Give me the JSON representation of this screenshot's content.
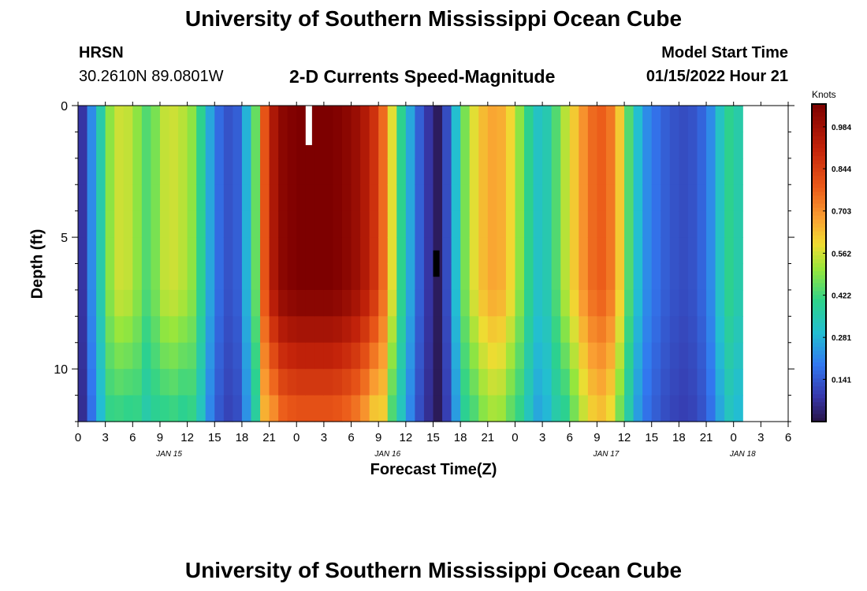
{
  "header": {
    "title": "University of Southern Mississippi Ocean Cube",
    "station": "HRSN",
    "coords": "30.2610N  89.0801W",
    "subtitle": "2-D Currents Speed-Magnitude",
    "model_start_label": "Model Start Time",
    "model_start_value": "01/15/2022 Hour 21"
  },
  "footer": {
    "title": "University of Southern Mississippi Ocean Cube"
  },
  "chart_data": {
    "type": "heatmap",
    "title": "2-D Currents Speed-Magnitude",
    "xlabel": "Forecast Time(Z)",
    "ylabel": "Depth (ft)",
    "x_range_hours": [
      0,
      78
    ],
    "y_range_ft": [
      0,
      12
    ],
    "y_inverted": true,
    "x_tick_labels": [
      "0",
      "3",
      "6",
      "9",
      "12",
      "15",
      "18",
      "21",
      "0",
      "3",
      "6",
      "9",
      "12",
      "15",
      "18",
      "21",
      "0",
      "3",
      "6",
      "9",
      "12",
      "15",
      "18",
      "21",
      "0",
      "3",
      "6"
    ],
    "y_ticks": [
      0,
      5,
      10
    ],
    "date_labels": [
      {
        "label": "JAN 15",
        "hour": 10
      },
      {
        "label": "JAN 16",
        "hour": 34
      },
      {
        "label": "JAN 17",
        "hour": 58
      },
      {
        "label": "JAN 18",
        "hour": 73
      }
    ],
    "colorbar": {
      "unit": "Knots",
      "min": 0.0,
      "max": 1.06,
      "tick_labels": [
        "0.984",
        "0.844",
        "0.703",
        "0.562",
        "0.422",
        "0.281",
        "0.141"
      ],
      "tick_values": [
        0.984,
        0.844,
        0.703,
        0.562,
        0.422,
        0.281,
        0.141
      ]
    },
    "depth_levels_ft": [
      0,
      1,
      2,
      3,
      4,
      5,
      6,
      7,
      8,
      9,
      10,
      11,
      12
    ],
    "surface_speed_by_hour": [
      [
        0,
        0.08
      ],
      [
        1,
        0.22
      ],
      [
        2,
        0.36
      ],
      [
        3,
        0.5
      ],
      [
        4,
        0.56
      ],
      [
        5,
        0.55
      ],
      [
        6,
        0.5
      ],
      [
        7,
        0.44
      ],
      [
        8,
        0.48
      ],
      [
        9,
        0.55
      ],
      [
        10,
        0.56
      ],
      [
        11,
        0.54
      ],
      [
        12,
        0.5
      ],
      [
        13,
        0.4
      ],
      [
        14,
        0.26
      ],
      [
        15,
        0.17
      ],
      [
        16,
        0.13
      ],
      [
        17,
        0.15
      ],
      [
        18,
        0.28
      ],
      [
        19,
        0.46
      ],
      [
        20,
        0.8
      ],
      [
        21,
        0.96
      ],
      [
        22,
        1.03
      ],
      [
        23,
        1.05
      ],
      [
        24,
        1.06
      ],
      [
        25,
        1.06
      ],
      [
        26,
        1.06
      ],
      [
        27,
        1.06
      ],
      [
        28,
        1.05
      ],
      [
        29,
        1.03
      ],
      [
        30,
        1.0
      ],
      [
        31,
        0.95
      ],
      [
        32,
        0.88
      ],
      [
        33,
        0.76
      ],
      [
        34,
        0.58
      ],
      [
        35,
        0.4
      ],
      [
        36,
        0.26
      ],
      [
        37,
        0.15
      ],
      [
        38,
        0.08
      ],
      [
        39,
        0.02
      ],
      [
        40,
        0.12
      ],
      [
        41,
        0.3
      ],
      [
        42,
        0.48
      ],
      [
        43,
        0.58
      ],
      [
        44,
        0.64
      ],
      [
        45,
        0.67
      ],
      [
        46,
        0.66
      ],
      [
        47,
        0.6
      ],
      [
        48,
        0.5
      ],
      [
        49,
        0.4
      ],
      [
        50,
        0.32
      ],
      [
        51,
        0.35
      ],
      [
        52,
        0.44
      ],
      [
        53,
        0.54
      ],
      [
        54,
        0.62
      ],
      [
        55,
        0.7
      ],
      [
        56,
        0.76
      ],
      [
        57,
        0.78
      ],
      [
        58,
        0.74
      ],
      [
        59,
        0.62
      ],
      [
        60,
        0.44
      ],
      [
        61,
        0.3
      ],
      [
        62,
        0.22
      ],
      [
        63,
        0.18
      ],
      [
        64,
        0.15
      ],
      [
        65,
        0.13
      ],
      [
        66,
        0.12
      ],
      [
        67,
        0.13
      ],
      [
        68,
        0.16
      ],
      [
        69,
        0.22
      ],
      [
        70,
        0.32
      ],
      [
        71,
        0.4
      ],
      [
        72,
        0.36
      ]
    ],
    "missing_data_cells": [
      {
        "hour_start": 25,
        "hour_end": 25.7,
        "depth_start_ft": 0,
        "depth_end_ft": 1.5,
        "color": "#ffffff"
      },
      {
        "hour_start": 39,
        "hour_end": 39.7,
        "depth_start_ft": 5.5,
        "depth_end_ft": 6.5,
        "color": "#000000"
      }
    ]
  }
}
